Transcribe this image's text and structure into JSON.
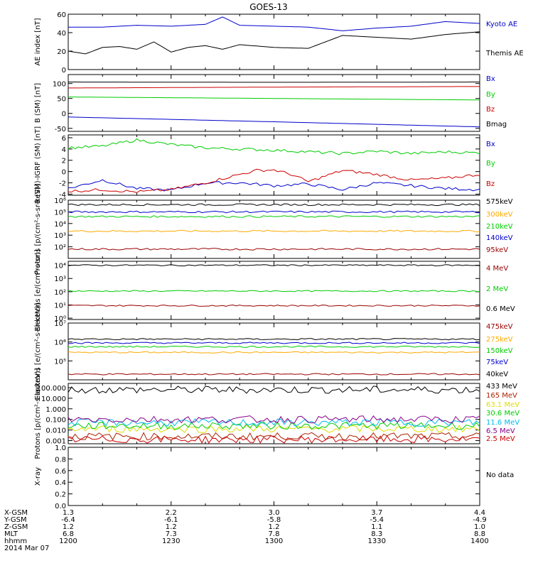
{
  "title": "GOES-13",
  "footer": {
    "rows": [
      {
        "label": "X-GSM",
        "values": [
          "1.3",
          "2.2",
          "3.0",
          "3.7",
          "4.4"
        ]
      },
      {
        "label": "Y-GSM",
        "values": [
          "-6.4",
          "-6.1",
          "-5.8",
          "-5.4",
          "-4.9"
        ]
      },
      {
        "label": "Z-GSM",
        "values": [
          "1.2",
          "1.2",
          "1.2",
          "1.1",
          "1.0"
        ]
      },
      {
        "label": "MLT",
        "values": [
          "6.8",
          "7.3",
          "7.8",
          "8.3",
          "8.8"
        ]
      },
      {
        "label": "hhmm",
        "values": [
          "1200",
          "1230",
          "1300",
          "1330",
          "1400"
        ]
      }
    ],
    "date": "2014 Mar 07"
  },
  "colors": {
    "black": "#000000",
    "blue": "#0000cc",
    "green": "#00cc00",
    "red": "#cc0000",
    "orange": "#ffaa00",
    "darkred": "#990000",
    "cyan": "#00bbee",
    "purple": "#880088",
    "yellow": "#dddd00",
    "brown": "#aa2200"
  },
  "chart_data": [
    {
      "type": "line",
      "ylabel": "AE index [nT]",
      "ylim": [
        0,
        60
      ],
      "yscale": "linear",
      "yticks": [
        "0",
        "20",
        "40",
        "60"
      ],
      "series": [
        {
          "name": "Kyoto AE",
          "color": "#0000cc",
          "x": [
            "1200",
            "1210",
            "1220",
            "1230",
            "1240",
            "1245",
            "1250",
            "1300",
            "1310",
            "1320",
            "1330",
            "1340",
            "1350",
            "1400"
          ],
          "y": [
            46,
            46,
            48,
            47,
            49,
            57,
            48,
            47,
            46,
            42,
            45,
            47,
            52,
            50
          ]
        },
        {
          "name": "Themis AE",
          "color": "#000000",
          "x": [
            "1200",
            "1205",
            "1210",
            "1215",
            "1220",
            "1225",
            "1230",
            "1235",
            "1240",
            "1245",
            "1250",
            "1300",
            "1310",
            "1320",
            "1330",
            "1340",
            "1350",
            "1400"
          ],
          "y": [
            20,
            17,
            24,
            25,
            22,
            30,
            19,
            24,
            26,
            22,
            27,
            24,
            23,
            37,
            35,
            33,
            38,
            41
          ]
        }
      ]
    },
    {
      "type": "line",
      "ylabel": "B (SM) [nT]",
      "ylim": [
        -60,
        130
      ],
      "yscale": "linear",
      "yticks": [
        "-50",
        "0",
        "50",
        "100"
      ],
      "series": [
        {
          "name": "Bx",
          "color": "#0000cc",
          "x": [
            "1200",
            "1300",
            "1400"
          ],
          "y": [
            -12,
            -28,
            -45
          ]
        },
        {
          "name": "By",
          "color": "#00cc00",
          "x": [
            "1200",
            "1300",
            "1400"
          ],
          "y": [
            55,
            50,
            45
          ]
        },
        {
          "name": "Bz",
          "color": "#cc0000",
          "x": [
            "1200",
            "1300",
            "1400"
          ],
          "y": [
            85,
            88,
            90
          ]
        },
        {
          "name": "Bmag",
          "color": "#000000",
          "x": [
            "1200",
            "1300",
            "1400"
          ],
          "y": [
            105,
            104,
            105
          ]
        }
      ]
    },
    {
      "type": "line",
      "ylabel": "B (SM)-IGRF (SM) [nT]",
      "ylim": [
        -4.2,
        6.5
      ],
      "yscale": "linear",
      "yticks": [
        "-4",
        "-2",
        "0",
        "2",
        "4",
        "6"
      ],
      "series": [
        {
          "name": "Bx",
          "color": "#0000cc",
          "x": [
            "1200",
            "1210",
            "1220",
            "1230",
            "1240",
            "1250",
            "1300",
            "1310",
            "1320",
            "1330",
            "1340",
            "1350",
            "1400"
          ],
          "y": [
            -3,
            -1.5,
            -3,
            -3.3,
            -2,
            -2,
            -2.5,
            -2.2,
            -3.2,
            -2,
            -2.5,
            -3,
            -3.2
          ]
        },
        {
          "name": "By",
          "color": "#00cc00",
          "x": [
            "1200",
            "1210",
            "1220",
            "1230",
            "1240",
            "1250",
            "1300",
            "1310",
            "1320",
            "1330",
            "1340",
            "1350",
            "1400"
          ],
          "y": [
            4.2,
            4.5,
            5.6,
            4.8,
            4.2,
            4,
            3.8,
            3.5,
            3.2,
            3.6,
            3.2,
            3.5,
            3.3
          ]
        },
        {
          "name": "Bz",
          "color": "#cc0000",
          "x": [
            "1200",
            "1210",
            "1220",
            "1230",
            "1240",
            "1250",
            "1255",
            "1300",
            "1305",
            "1310",
            "1320",
            "1330",
            "1340",
            "1350",
            "1400"
          ],
          "y": [
            -3.5,
            -3.2,
            -3.6,
            -3.2,
            -2,
            -0.5,
            0.2,
            0.3,
            -0.5,
            -1.8,
            0.2,
            -0.5,
            -1.5,
            -1.2,
            -0.5
          ]
        }
      ]
    },
    {
      "type": "line",
      "ylabel": "Protons [p/(cm²-s-sr-keV)]",
      "ylim": [
        1,
        6
      ],
      "yscale": "log",
      "yticks": [
        "10²",
        "10³",
        "10⁴",
        "10⁵",
        "10⁶"
      ],
      "series": [
        {
          "name": "575keV",
          "color": "#000000",
          "x": [
            "1200",
            "1400"
          ],
          "y": [
            5.62,
            5.62
          ]
        },
        {
          "name": "300keV",
          "color": "#ffaa00",
          "x": [
            "1200",
            "1400"
          ],
          "y": [
            3.35,
            3.35
          ]
        },
        {
          "name": "210keV",
          "color": "#00cc00",
          "x": [
            "1200",
            "1400"
          ],
          "y": [
            4.6,
            4.6
          ]
        },
        {
          "name": "140keV",
          "color": "#0000cc",
          "x": [
            "1200",
            "1400"
          ],
          "y": [
            5.0,
            5.0
          ]
        },
        {
          "name": "95keV",
          "color": "#990000",
          "x": [
            "1200",
            "1400"
          ],
          "y": [
            1.8,
            1.8
          ]
        }
      ]
    },
    {
      "type": "line",
      "ylabel": "Electrons [e/(cm²-s-sr)]",
      "ylim": [
        -0.1,
        4.3
      ],
      "yscale": "log",
      "yticks": [
        "10⁰",
        "10¹",
        "10²",
        "10³",
        "10⁴"
      ],
      "series": [
        {
          "name": "4 MeV",
          "color": "#990000",
          "x": [
            "1200",
            "1400"
          ],
          "y": [
            0.95,
            0.95
          ]
        },
        {
          "name": "2 MeV",
          "color": "#00cc00",
          "x": [
            "1200",
            "1400"
          ],
          "y": [
            2.05,
            2.05
          ]
        },
        {
          "name": "0.6 MeV",
          "color": "#000000",
          "x": [
            "1200",
            "1400"
          ],
          "y": [
            4.0,
            4.0
          ]
        }
      ]
    },
    {
      "type": "line",
      "ylabel": "Electrons [e/(cm²-s-sr-keV)]",
      "ylim": [
        4,
        7
      ],
      "yscale": "log",
      "yticks": [
        "10⁵",
        "10⁶",
        "10⁷"
      ],
      "series": [
        {
          "name": "475keV",
          "color": "#990000",
          "x": [
            "1200",
            "1400"
          ],
          "y": [
            4.3,
            4.3
          ]
        },
        {
          "name": "275keV",
          "color": "#ffaa00",
          "x": [
            "1200",
            "1400"
          ],
          "y": [
            5.45,
            5.45
          ]
        },
        {
          "name": "150keV",
          "color": "#00cc00",
          "x": [
            "1200",
            "1400"
          ],
          "y": [
            5.75,
            5.75
          ]
        },
        {
          "name": "75keV",
          "color": "#0000cc",
          "x": [
            "1200",
            "1400"
          ],
          "y": [
            5.95,
            5.95
          ]
        },
        {
          "name": "40keV",
          "color": "#000000",
          "x": [
            "1200",
            "1400"
          ],
          "y": [
            6.15,
            6.15
          ]
        }
      ]
    },
    {
      "type": "line",
      "ylabel": "Protons [p/(cm²-s-sr-keV)]",
      "ylim": [
        -3.3,
        2.4
      ],
      "yscale": "log",
      "yticks": [
        "0.001",
        "0.010",
        "0.100",
        "1.000",
        "10.000",
        "100.000"
      ],
      "series": [
        {
          "name": "433 MeV",
          "color": "#000000",
          "x": [
            "1200",
            "1400"
          ],
          "y": [
            1.8,
            1.8
          ]
        },
        {
          "name": "165 MeV",
          "color": "#aa2200",
          "x": [
            "1200",
            "1400"
          ],
          "y": [
            -2.6,
            -2.6
          ]
        },
        {
          "name": "63.1 MeV",
          "color": "#dddd00",
          "x": [
            "1200",
            "1400"
          ],
          "y": [
            -1.9,
            -1.9
          ]
        },
        {
          "name": "30.6 MeV",
          "color": "#00cc00",
          "x": [
            "1200",
            "1400"
          ],
          "y": [
            -1.6,
            -1.6
          ]
        },
        {
          "name": "11.6 MeV",
          "color": "#00bbee",
          "x": [
            "1200",
            "1400"
          ],
          "y": [
            -1.3,
            -1.3
          ]
        },
        {
          "name": "6.5 MeV",
          "color": "#880088",
          "x": [
            "1200",
            "1400"
          ],
          "y": [
            -1.0,
            -1.0
          ]
        },
        {
          "name": "2.5 MeV",
          "color": "#cc0000",
          "x": [
            "1200",
            "1400"
          ],
          "y": [
            -2.9,
            -2.9
          ]
        }
      ]
    },
    {
      "type": "line",
      "ylabel": "X-ray",
      "ylim": [
        0,
        1
      ],
      "yscale": "linear",
      "yticks": [
        "0.0",
        "0.2",
        "0.4",
        "0.6",
        "0.8",
        "1.0"
      ],
      "series": [],
      "note": "No data"
    }
  ]
}
